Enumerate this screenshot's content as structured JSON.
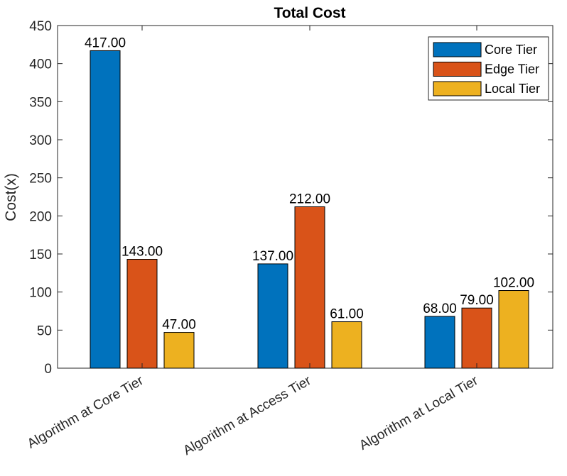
{
  "chart_data": {
    "type": "bar",
    "title": "Total Cost",
    "xlabel": "",
    "ylabel": "Cost(x)",
    "ylim": [
      0,
      450
    ],
    "yticks": [
      0,
      50,
      100,
      150,
      200,
      250,
      300,
      350,
      400,
      450
    ],
    "categories": [
      "Algorithm at Core Tier",
      "Algorithm at Access Tier",
      "Algorithm at Local Tier"
    ],
    "series": [
      {
        "name": "Core Tier",
        "color": "#0072BD",
        "values": [
          417,
          137,
          68
        ],
        "labels": [
          "417.00",
          "137.00",
          "68.00"
        ]
      },
      {
        "name": "Edge Tier",
        "color": "#D95319",
        "values": [
          143,
          212,
          79
        ],
        "labels": [
          "143.00",
          "212.00",
          "79.00"
        ]
      },
      {
        "name": "Local Tier",
        "color": "#EDB120",
        "values": [
          47,
          61,
          102
        ],
        "labels": [
          "47.00",
          "61.00",
          "102.00"
        ]
      }
    ],
    "legend": "top-right",
    "grid": false
  }
}
